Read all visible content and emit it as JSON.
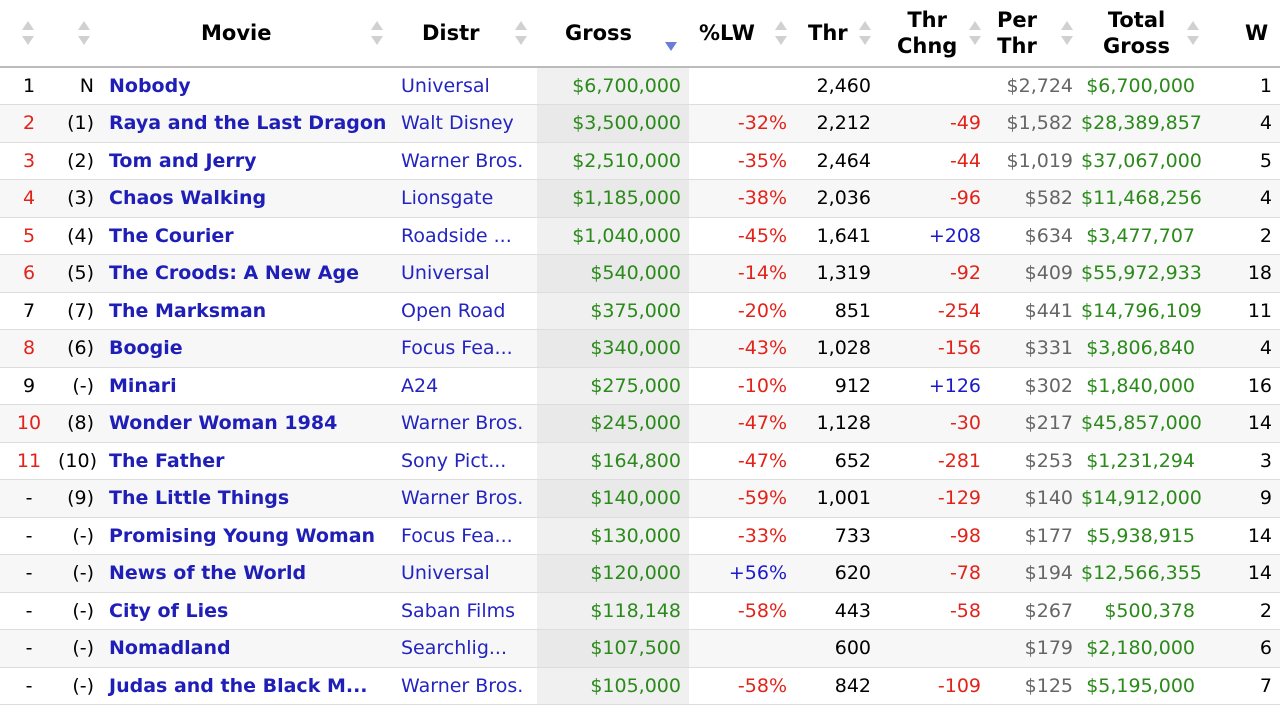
{
  "colors": {
    "link": "#1f1fb8",
    "money": "#2a8a1a",
    "negative": "#e2231a",
    "positive": "#1a1ac8",
    "sort_active": "#6a7ed8"
  },
  "header": {
    "movie": "Movie",
    "distr": "Distr",
    "gross": "Gross",
    "lw": "%LW",
    "thr": "Thr",
    "thr_chng_1": "Thr",
    "thr_chng_2": "Chng",
    "per_thr_1": "Per",
    "per_thr_2": "Thr",
    "total_1": "Total",
    "total_2": "Gross",
    "w": "W"
  },
  "rows": [
    {
      "rank": "1",
      "rank_color": "black",
      "last": "N",
      "movie": "Nobody",
      "distr": "Universal",
      "gross": "$6,700,000",
      "lw": "",
      "thr": "2,460",
      "chng": "",
      "per": "$2,724",
      "total": "$6,700,000",
      "w": "1"
    },
    {
      "rank": "2",
      "rank_color": "red",
      "last": "(1)",
      "movie": "Raya and the Last Dragon",
      "distr": "Walt Disney",
      "gross": "$3,500,000",
      "lw": "-32%",
      "thr": "2,212",
      "chng": "-49",
      "per": "$1,582",
      "total": "$28,389,857",
      "w": "4"
    },
    {
      "rank": "3",
      "rank_color": "red",
      "last": "(2)",
      "movie": "Tom and Jerry",
      "distr": "Warner Bros.",
      "gross": "$2,510,000",
      "lw": "-35%",
      "thr": "2,464",
      "chng": "-44",
      "per": "$1,019",
      "total": "$37,067,000",
      "w": "5"
    },
    {
      "rank": "4",
      "rank_color": "red",
      "last": "(3)",
      "movie": "Chaos Walking",
      "distr": "Lionsgate",
      "gross": "$1,185,000",
      "lw": "-38%",
      "thr": "2,036",
      "chng": "-96",
      "per": "$582",
      "total": "$11,468,256",
      "w": "4"
    },
    {
      "rank": "5",
      "rank_color": "red",
      "last": "(4)",
      "movie": "The Courier",
      "distr": "Roadside ...",
      "gross": "$1,040,000",
      "lw": "-45%",
      "thr": "1,641",
      "chng": "+208",
      "per": "$634",
      "total": "$3,477,707",
      "w": "2"
    },
    {
      "rank": "6",
      "rank_color": "red",
      "last": "(5)",
      "movie": "The Croods: A New Age",
      "distr": "Universal",
      "gross": "$540,000",
      "lw": "-14%",
      "thr": "1,319",
      "chng": "-92",
      "per": "$409",
      "total": "$55,972,933",
      "w": "18"
    },
    {
      "rank": "7",
      "rank_color": "black",
      "last": "(7)",
      "movie": "The Marksman",
      "distr": "Open Road",
      "gross": "$375,000",
      "lw": "-20%",
      "thr": "851",
      "chng": "-254",
      "per": "$441",
      "total": "$14,796,109",
      "w": "11"
    },
    {
      "rank": "8",
      "rank_color": "red",
      "last": "(6)",
      "movie": "Boogie",
      "distr": "Focus Fea...",
      "gross": "$340,000",
      "lw": "-43%",
      "thr": "1,028",
      "chng": "-156",
      "per": "$331",
      "total": "$3,806,840",
      "w": "4"
    },
    {
      "rank": "9",
      "rank_color": "black",
      "last": "(-)",
      "movie": "Minari",
      "distr": "A24",
      "gross": "$275,000",
      "lw": "-10%",
      "thr": "912",
      "chng": "+126",
      "per": "$302",
      "total": "$1,840,000",
      "w": "16"
    },
    {
      "rank": "10",
      "rank_color": "red",
      "last": "(8)",
      "movie": "Wonder Woman 1984",
      "distr": "Warner Bros.",
      "gross": "$245,000",
      "lw": "-47%",
      "thr": "1,128",
      "chng": "-30",
      "per": "$217",
      "total": "$45,857,000",
      "w": "14"
    },
    {
      "rank": "11",
      "rank_color": "red",
      "last": "(10)",
      "movie": "The Father",
      "distr": "Sony Pict...",
      "gross": "$164,800",
      "lw": "-47%",
      "thr": "652",
      "chng": "-281",
      "per": "$253",
      "total": "$1,231,294",
      "w": "3"
    },
    {
      "rank": "-",
      "rank_color": "black",
      "last": "(9)",
      "movie": "The Little Things",
      "distr": "Warner Bros.",
      "gross": "$140,000",
      "lw": "-59%",
      "thr": "1,001",
      "chng": "-129",
      "per": "$140",
      "total": "$14,912,000",
      "w": "9"
    },
    {
      "rank": "-",
      "rank_color": "black",
      "last": "(-)",
      "movie": "Promising Young Woman",
      "distr": "Focus Fea...",
      "gross": "$130,000",
      "lw": "-33%",
      "thr": "733",
      "chng": "-98",
      "per": "$177",
      "total": "$5,938,915",
      "w": "14"
    },
    {
      "rank": "-",
      "rank_color": "black",
      "last": "(-)",
      "movie": "News of the World",
      "distr": "Universal",
      "gross": "$120,000",
      "lw": "+56%",
      "thr": "620",
      "chng": "-78",
      "per": "$194",
      "total": "$12,566,355",
      "w": "14"
    },
    {
      "rank": "-",
      "rank_color": "black",
      "last": "(-)",
      "movie": "City of Lies",
      "distr": "Saban Films",
      "gross": "$118,148",
      "lw": "-58%",
      "thr": "443",
      "chng": "-58",
      "per": "$267",
      "total": "$500,378",
      "w": "2"
    },
    {
      "rank": "-",
      "rank_color": "black",
      "last": "(-)",
      "movie": "Nomadland",
      "distr": "Searchlig...",
      "gross": "$107,500",
      "lw": "",
      "thr": "600",
      "chng": "",
      "per": "$179",
      "total": "$2,180,000",
      "w": "6"
    },
    {
      "rank": "-",
      "rank_color": "black",
      "last": "(-)",
      "movie": "Judas and the Black M...",
      "distr": "Warner Bros.",
      "gross": "$105,000",
      "lw": "-58%",
      "thr": "842",
      "chng": "-109",
      "per": "$125",
      "total": "$5,195,000",
      "w": "7"
    }
  ]
}
